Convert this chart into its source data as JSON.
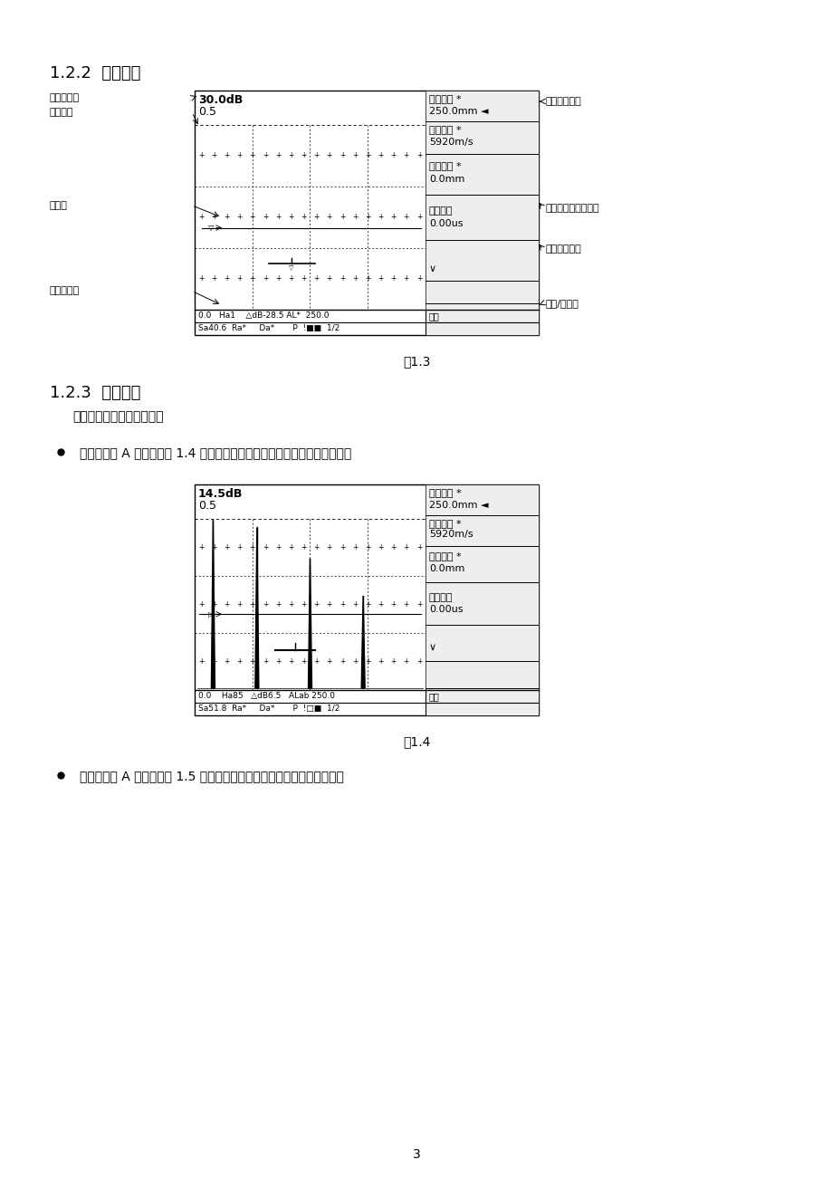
{
  "page_bg": "#ffffff",
  "page_number": "3",
  "section_122_title": "1.2.2  仪器画面",
  "fig13_title": "图1.3",
  "fig13_labels_left": [
    "增益值读数",
    "增益步进",
    "波形区",
    "测量数据区"
  ],
  "fig13_labels_right": [
    "子菜单显示区",
    "翻页（后翻）提示栏",
    "当前主菜单名",
    "页数/总页数"
  ],
  "fig13_screen": {
    "gain_line1": "30.0dB",
    "gain_line2": "0.5",
    "right_menu_lines": [
      "探测范围 *",
      "250.0mm ◄",
      "材料声速 *",
      "5920m/s",
      "脉冲移位 *",
      "0.0mm",
      "探头零点",
      "0.00us",
      "∨"
    ],
    "status_bar1": "0.0   Ha1    △dB-28.5 AL*  250.0",
    "status_bar1_right": "基本",
    "status_bar2": "Sa40.6  Ra*     Da*       P  !■■  1/2"
  },
  "section_123_title": "1.2.3  显示模式",
  "section_123_intro": "仪器屏幕显示分两种模式：",
  "bullet1_text": "正常模式的 A 型扫描如图 1.4 所示，调节、设定仪器时使用这一显示模式；",
  "fig14_title": "图1.4",
  "fig14_screen": {
    "gain_line1": "14.5dB",
    "gain_line2": "0.5",
    "right_menu_lines": [
      "探测范围 *",
      "250.0mm ◄",
      "材料声速 *",
      "5920m/s",
      "脉冲移位 *",
      "0.0mm",
      "探头零点",
      "0.00us",
      "∨"
    ],
    "status_bar1": "0.0    Ha85   △dB6.5   ALab 250.0",
    "status_bar1_right": "基本",
    "status_bar2": "Sa51.8  Ra*     Da*       P  !□■  1/2"
  },
  "bullet2_text": "放大模式的 A 型扫描如图 1.5 所示，现场探伤时可以选择这一显示模式："
}
